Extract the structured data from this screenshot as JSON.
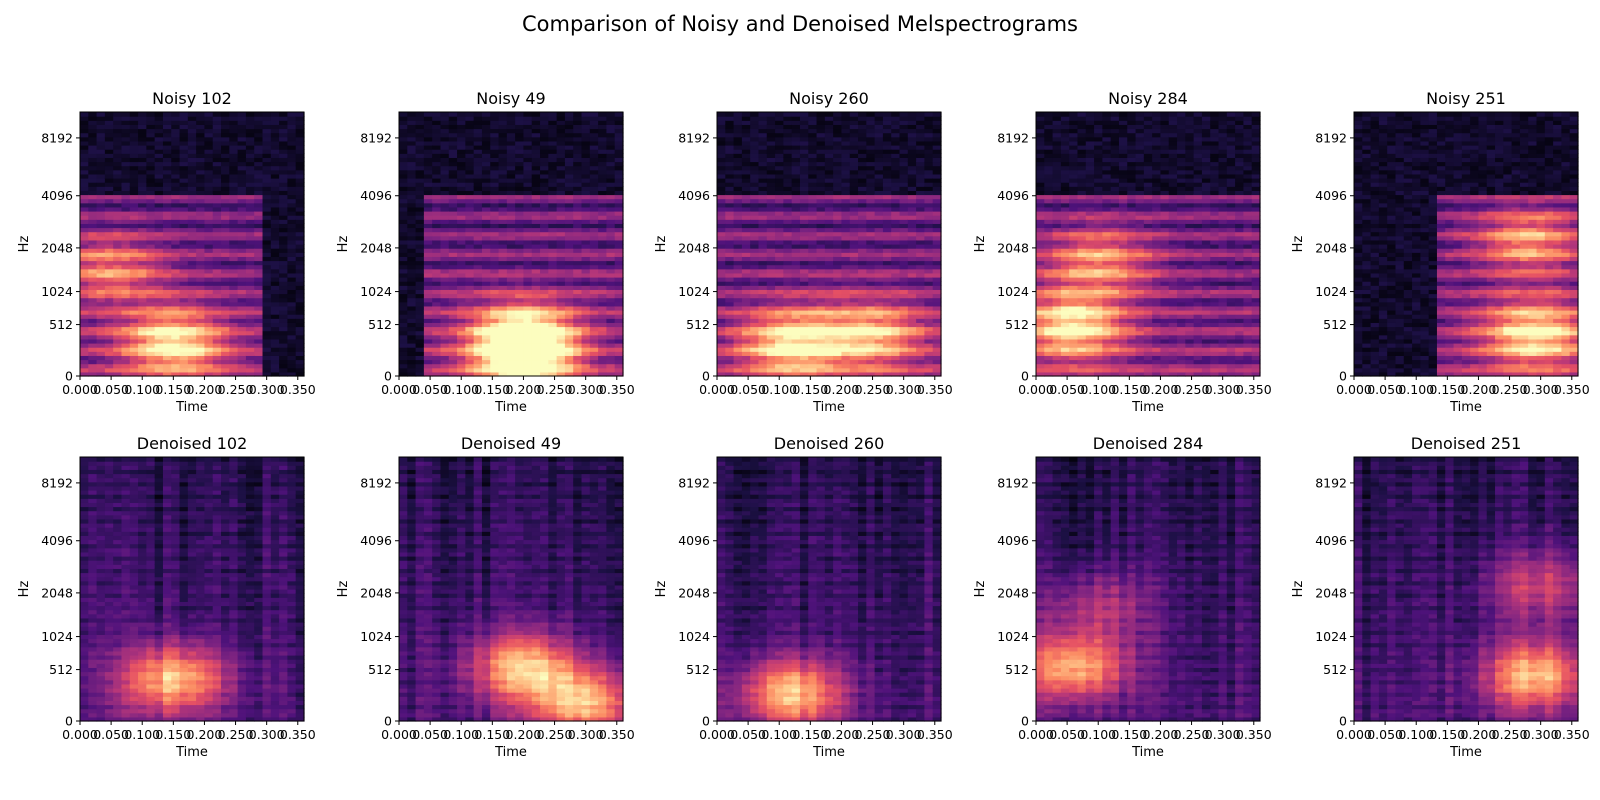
{
  "figure": {
    "suptitle": "Comparison of Noisy and Denoised Melspectrograms"
  },
  "colors": {
    "colormap": "magma",
    "stops": [
      "#000004",
      "#1c1044",
      "#4f127b",
      "#812581",
      "#b5367a",
      "#e55064",
      "#fb8761",
      "#fec287",
      "#fcfdbf"
    ]
  },
  "chart_data": [
    {
      "type": "heatmap",
      "title": "Noisy 102",
      "xlabel": "Time",
      "ylabel": "Hz",
      "xticks": [
        "0.000",
        "0.050",
        "0.100",
        "0.150",
        "0.200",
        "0.250",
        "0.300",
        "0.350"
      ],
      "yticks": [
        "0",
        "512",
        "1024",
        "2048",
        "4096",
        "8192"
      ],
      "xlim": [
        0,
        0.36
      ],
      "y_scale": "mel",
      "cutoff_hz": 4096,
      "active_time_range": [
        0.0,
        0.29
      ],
      "hotspots": [
        {
          "time": 0.15,
          "hz": 300,
          "level": 1.0
        },
        {
          "time": 0.05,
          "hz": 1500,
          "level": 0.62
        }
      ],
      "grid": false
    },
    {
      "type": "heatmap",
      "title": "Noisy 49",
      "xlabel": "Time",
      "ylabel": "Hz",
      "xticks": [
        "0.000",
        "0.050",
        "0.100",
        "0.150",
        "0.200",
        "0.250",
        "0.300",
        "0.350"
      ],
      "yticks": [
        "0",
        "512",
        "1024",
        "2048",
        "4096",
        "8192"
      ],
      "xlim": [
        0,
        0.36
      ],
      "y_scale": "mel",
      "cutoff_hz": 4096,
      "active_time_range": [
        0.04,
        0.36
      ],
      "hotspots": [
        {
          "time": 0.2,
          "hz": 400,
          "level": 1.0
        },
        {
          "time": 0.2,
          "hz": 150,
          "level": 0.95
        }
      ],
      "grid": false
    },
    {
      "type": "heatmap",
      "title": "Noisy 260",
      "xlabel": "Time",
      "ylabel": "Hz",
      "xticks": [
        "0.000",
        "0.050",
        "0.100",
        "0.150",
        "0.200",
        "0.250",
        "0.300",
        "0.350"
      ],
      "yticks": [
        "0",
        "512",
        "1024",
        "2048",
        "4096",
        "8192"
      ],
      "xlim": [
        0,
        0.36
      ],
      "y_scale": "mel",
      "cutoff_hz": 4096,
      "active_time_range": [
        0.0,
        0.36
      ],
      "hotspots": [
        {
          "time": 0.12,
          "hz": 300,
          "level": 1.0
        },
        {
          "time": 0.25,
          "hz": 400,
          "level": 0.8
        }
      ],
      "grid": false
    },
    {
      "type": "heatmap",
      "title": "Noisy 284",
      "xlabel": "Time",
      "ylabel": "Hz",
      "xticks": [
        "0.000",
        "0.050",
        "0.100",
        "0.150",
        "0.200",
        "0.250",
        "0.300",
        "0.350"
      ],
      "yticks": [
        "0",
        "512",
        "1024",
        "2048",
        "4096",
        "8192"
      ],
      "xlim": [
        0,
        0.36
      ],
      "y_scale": "mel",
      "cutoff_hz": 4096,
      "active_time_range": [
        0.0,
        0.36
      ],
      "hotspots": [
        {
          "time": 0.06,
          "hz": 500,
          "level": 1.0
        },
        {
          "time": 0.1,
          "hz": 1700,
          "level": 0.7
        }
      ],
      "grid": false
    },
    {
      "type": "heatmap",
      "title": "Noisy 251",
      "xlabel": "Time",
      "ylabel": "Hz",
      "xticks": [
        "0.000",
        "0.050",
        "0.100",
        "0.150",
        "0.200",
        "0.250",
        "0.300",
        "0.350"
      ],
      "yticks": [
        "0",
        "512",
        "1024",
        "2048",
        "4096",
        "8192"
      ],
      "xlim": [
        0,
        0.36
      ],
      "y_scale": "mel",
      "cutoff_hz": 4096,
      "active_time_range": [
        0.13,
        0.36
      ],
      "hotspots": [
        {
          "time": 0.29,
          "hz": 400,
          "level": 1.0
        },
        {
          "time": 0.28,
          "hz": 2300,
          "level": 0.75
        }
      ],
      "grid": false
    },
    {
      "type": "heatmap",
      "title": "Denoised 102",
      "xlabel": "Time",
      "ylabel": "Hz",
      "xticks": [
        "0.000",
        "0.050",
        "0.100",
        "0.150",
        "0.200",
        "0.250",
        "0.300",
        "0.350"
      ],
      "yticks": [
        "0",
        "512",
        "1024",
        "2048",
        "4096",
        "8192"
      ],
      "xlim": [
        0,
        0.36
      ],
      "y_scale": "mel",
      "hotspots": [
        {
          "time": 0.15,
          "hz": 400,
          "level": 1.0
        }
      ],
      "grid": false
    },
    {
      "type": "heatmap",
      "title": "Denoised 49",
      "xlabel": "Time",
      "ylabel": "Hz",
      "xticks": [
        "0.000",
        "0.050",
        "0.100",
        "0.150",
        "0.200",
        "0.250",
        "0.300",
        "0.350"
      ],
      "yticks": [
        "0",
        "512",
        "1024",
        "2048",
        "4096",
        "8192"
      ],
      "xlim": [
        0,
        0.36
      ],
      "y_scale": "mel",
      "hotspots": [
        {
          "time": 0.2,
          "hz": 550,
          "level": 1.0
        },
        {
          "time": 0.3,
          "hz": 150,
          "level": 0.95
        }
      ],
      "grid": false
    },
    {
      "type": "heatmap",
      "title": "Denoised 260",
      "xlabel": "Time",
      "ylabel": "Hz",
      "xticks": [
        "0.000",
        "0.050",
        "0.100",
        "0.150",
        "0.200",
        "0.250",
        "0.300",
        "0.350"
      ],
      "yticks": [
        "0",
        "512",
        "1024",
        "2048",
        "4096",
        "8192"
      ],
      "xlim": [
        0,
        0.36
      ],
      "y_scale": "mel",
      "hotspots": [
        {
          "time": 0.12,
          "hz": 250,
          "level": 1.0
        }
      ],
      "grid": false
    },
    {
      "type": "heatmap",
      "title": "Denoised 284",
      "xlabel": "Time",
      "ylabel": "Hz",
      "xticks": [
        "0.000",
        "0.050",
        "0.100",
        "0.150",
        "0.200",
        "0.250",
        "0.300",
        "0.350"
      ],
      "yticks": [
        "0",
        "512",
        "1024",
        "2048",
        "4096",
        "8192"
      ],
      "xlim": [
        0,
        0.36
      ],
      "y_scale": "mel",
      "hotspots": [
        {
          "time": 0.06,
          "hz": 550,
          "level": 1.0
        },
        {
          "time": 0.1,
          "hz": 1700,
          "level": 0.45
        }
      ],
      "grid": false
    },
    {
      "type": "heatmap",
      "title": "Denoised 251",
      "xlabel": "Time",
      "ylabel": "Hz",
      "xticks": [
        "0.000",
        "0.050",
        "0.100",
        "0.150",
        "0.200",
        "0.250",
        "0.300",
        "0.350"
      ],
      "yticks": [
        "0",
        "512",
        "1024",
        "2048",
        "4096",
        "8192"
      ],
      "xlim": [
        0,
        0.36
      ],
      "y_scale": "mel",
      "hotspots": [
        {
          "time": 0.29,
          "hz": 450,
          "level": 1.0
        },
        {
          "time": 0.3,
          "hz": 2300,
          "level": 0.55
        }
      ],
      "grid": false
    }
  ]
}
